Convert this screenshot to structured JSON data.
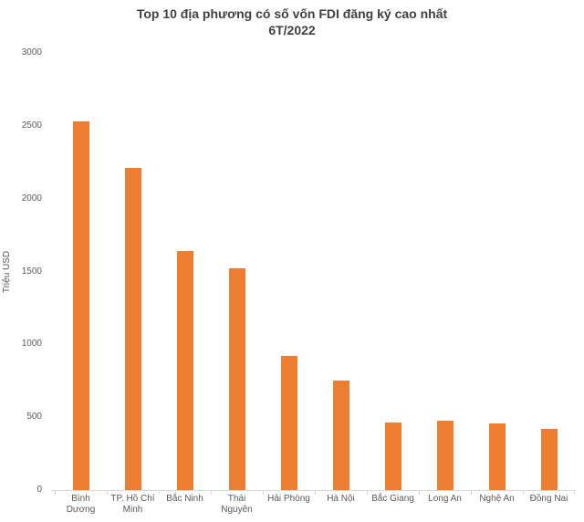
{
  "chart": {
    "title_line1": "Top 10 địa phương có số vốn FDI đăng ký cao nhất",
    "title_line2": "6T/2022",
    "y_axis_title": "Triệu USD"
  },
  "chart_data": {
    "type": "bar",
    "title": "Top 10 địa phương có số vốn FDI đăng ký cao nhất 6T/2022",
    "categories": [
      "Bình Dương",
      "TP. Hồ Chí Minh",
      "Bắc Ninh",
      "Thái Nguyên",
      "Hải Phòng",
      "Hà Nội",
      "Bắc Giang",
      "Long An",
      "Nghệ An",
      "Đồng Nai"
    ],
    "values": [
      2530,
      2210,
      1640,
      1525,
      920,
      750,
      465,
      475,
      460,
      420
    ],
    "xlabel": "",
    "ylabel": "Triệu USD",
    "ylim": [
      0,
      3000
    ],
    "yticks": [
      0,
      500,
      1000,
      1500,
      2000,
      2500,
      3000
    ],
    "grid": "off",
    "legend": "none",
    "bar_color": "#ED7D31",
    "axis_line_color": "#d9d9d9",
    "tick_label_color": "#595959",
    "title_color": "#404040",
    "category_label_lines": [
      [
        "Bình",
        "Dương"
      ],
      [
        "TP. Hồ Chí",
        "Minh"
      ],
      [
        "Bắc Ninh"
      ],
      [
        "Thái",
        "Nguyên"
      ],
      [
        "Hải Phòng"
      ],
      [
        "Hà Nội"
      ],
      [
        "Bắc Giang"
      ],
      [
        "Long An"
      ],
      [
        "Nghệ An"
      ],
      [
        "Đồng Nai"
      ]
    ]
  }
}
